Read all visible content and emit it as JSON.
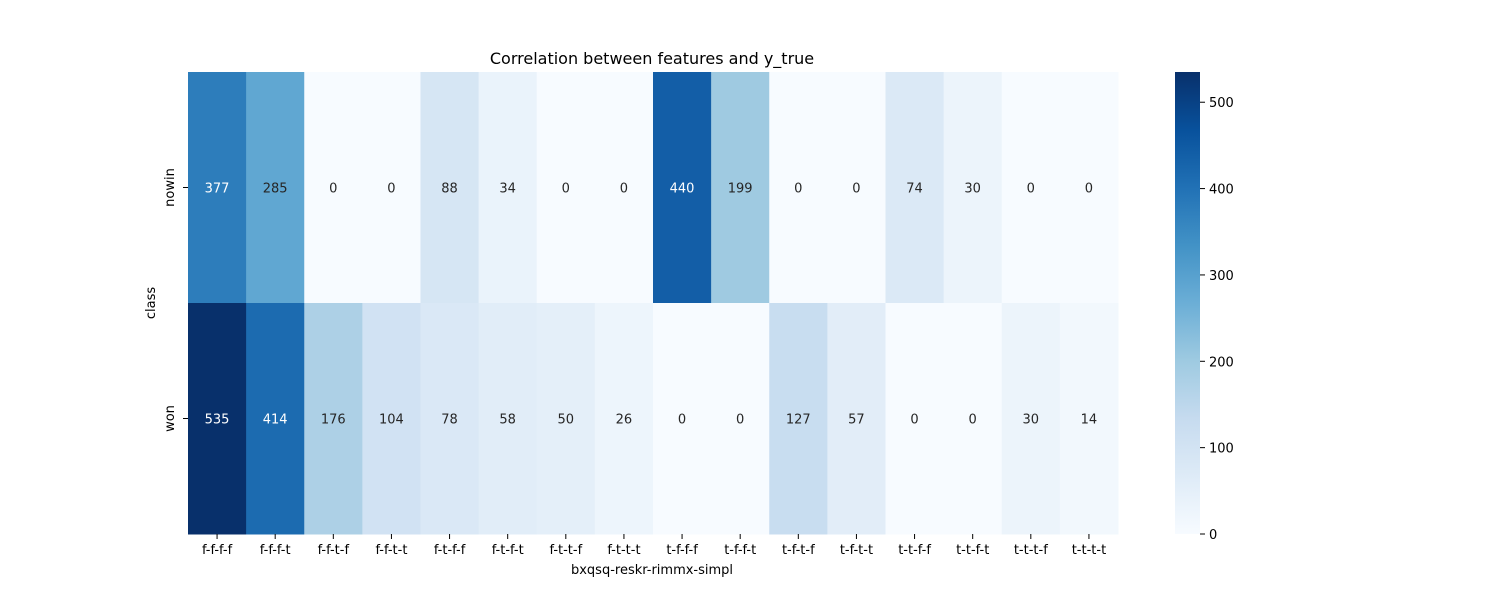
{
  "chart_data": {
    "type": "heatmap",
    "title": "Correlation between features and y_true",
    "xlabel": "bxqsq-reskr-rimmx-simpl",
    "ylabel": "class",
    "x_categories": [
      "f-f-f-f",
      "f-f-f-t",
      "f-f-t-f",
      "f-f-t-t",
      "f-t-f-f",
      "f-t-f-t",
      "f-t-t-f",
      "f-t-t-t",
      "t-f-f-f",
      "t-f-f-t",
      "t-f-t-f",
      "t-f-t-t",
      "t-t-f-f",
      "t-t-f-t",
      "t-t-t-f",
      "t-t-t-t"
    ],
    "y_categories": [
      "nowin",
      "won"
    ],
    "values": [
      [
        377,
        285,
        0,
        0,
        88,
        34,
        0,
        0,
        440,
        199,
        0,
        0,
        74,
        30,
        0,
        0
      ],
      [
        535,
        414,
        176,
        104,
        78,
        58,
        50,
        26,
        0,
        0,
        127,
        57,
        0,
        0,
        30,
        14
      ]
    ],
    "colormap": "Blues",
    "vmin": 0,
    "vmax": 535,
    "colorbar_ticks": [
      0,
      100,
      200,
      300,
      400,
      500
    ],
    "annotate": true
  }
}
